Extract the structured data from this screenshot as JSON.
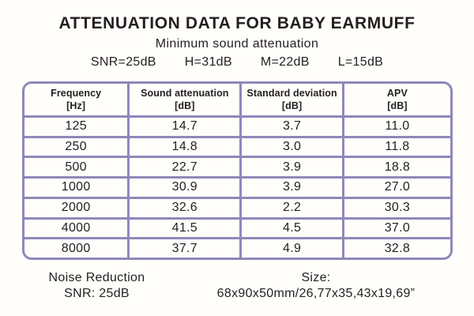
{
  "page": {
    "title": "ATTENUATION DATA FOR BABY EARMUFF",
    "subtitle": "Minimum sound attenuation",
    "ratings": {
      "snr": "SNR=25dB",
      "h": "H=31dB",
      "m": "M=22dB",
      "l": "L=15dB"
    }
  },
  "table": {
    "headers": [
      {
        "label": "Frequency",
        "unit": "[Hz]"
      },
      {
        "label": "Sound attenuation",
        "unit": "[dB]"
      },
      {
        "label": "Standard deviation",
        "unit": "[dB]"
      },
      {
        "label": "APV",
        "unit": "[dB]"
      }
    ],
    "rows": [
      [
        "125",
        "14.7",
        "3.7",
        "11.0"
      ],
      [
        "250",
        "14.8",
        "3.0",
        "11.8"
      ],
      [
        "500",
        "22.7",
        "3.9",
        "18.8"
      ],
      [
        "1000",
        "30.9",
        "3.9",
        "27.0"
      ],
      [
        "2000",
        "32.6",
        "2.2",
        "30.3"
      ],
      [
        "4000",
        "41.5",
        "4.5",
        "37.0"
      ],
      [
        "8000",
        "37.7",
        "4.9",
        "32.8"
      ]
    ]
  },
  "footer": {
    "noise_line1": "Noise Reduction",
    "noise_line2": "SNR: 25dB",
    "size_line1": "Size:",
    "size_line2": "68x90x50mm/26,77x35,43x19,69”"
  },
  "colors": {
    "table_border": "#9187b9",
    "text": "#231f20",
    "background": "#fffefb"
  },
  "chart_data": {
    "type": "table",
    "title": "ATTENUATION DATA FOR BABY EARMUFF",
    "subtitle": "Minimum sound attenuation",
    "summary_ratings": {
      "SNR_dB": 25,
      "H_dB": 31,
      "M_dB": 22,
      "L_dB": 15
    },
    "columns": [
      "Frequency [Hz]",
      "Sound attenuation [dB]",
      "Standard deviation [dB]",
      "APV [dB]"
    ],
    "rows": [
      [
        125,
        14.7,
        3.7,
        11.0
      ],
      [
        250,
        14.8,
        3.0,
        11.8
      ],
      [
        500,
        22.7,
        3.9,
        18.8
      ],
      [
        1000,
        30.9,
        3.9,
        27.0
      ],
      [
        2000,
        32.6,
        2.2,
        30.3
      ],
      [
        4000,
        41.5,
        4.5,
        37.0
      ],
      [
        8000,
        37.7,
        4.9,
        32.8
      ]
    ],
    "notes": [
      "Noise Reduction SNR: 25dB",
      "Size: 68x90x50mm/26,77x35,43x19,69”"
    ]
  }
}
